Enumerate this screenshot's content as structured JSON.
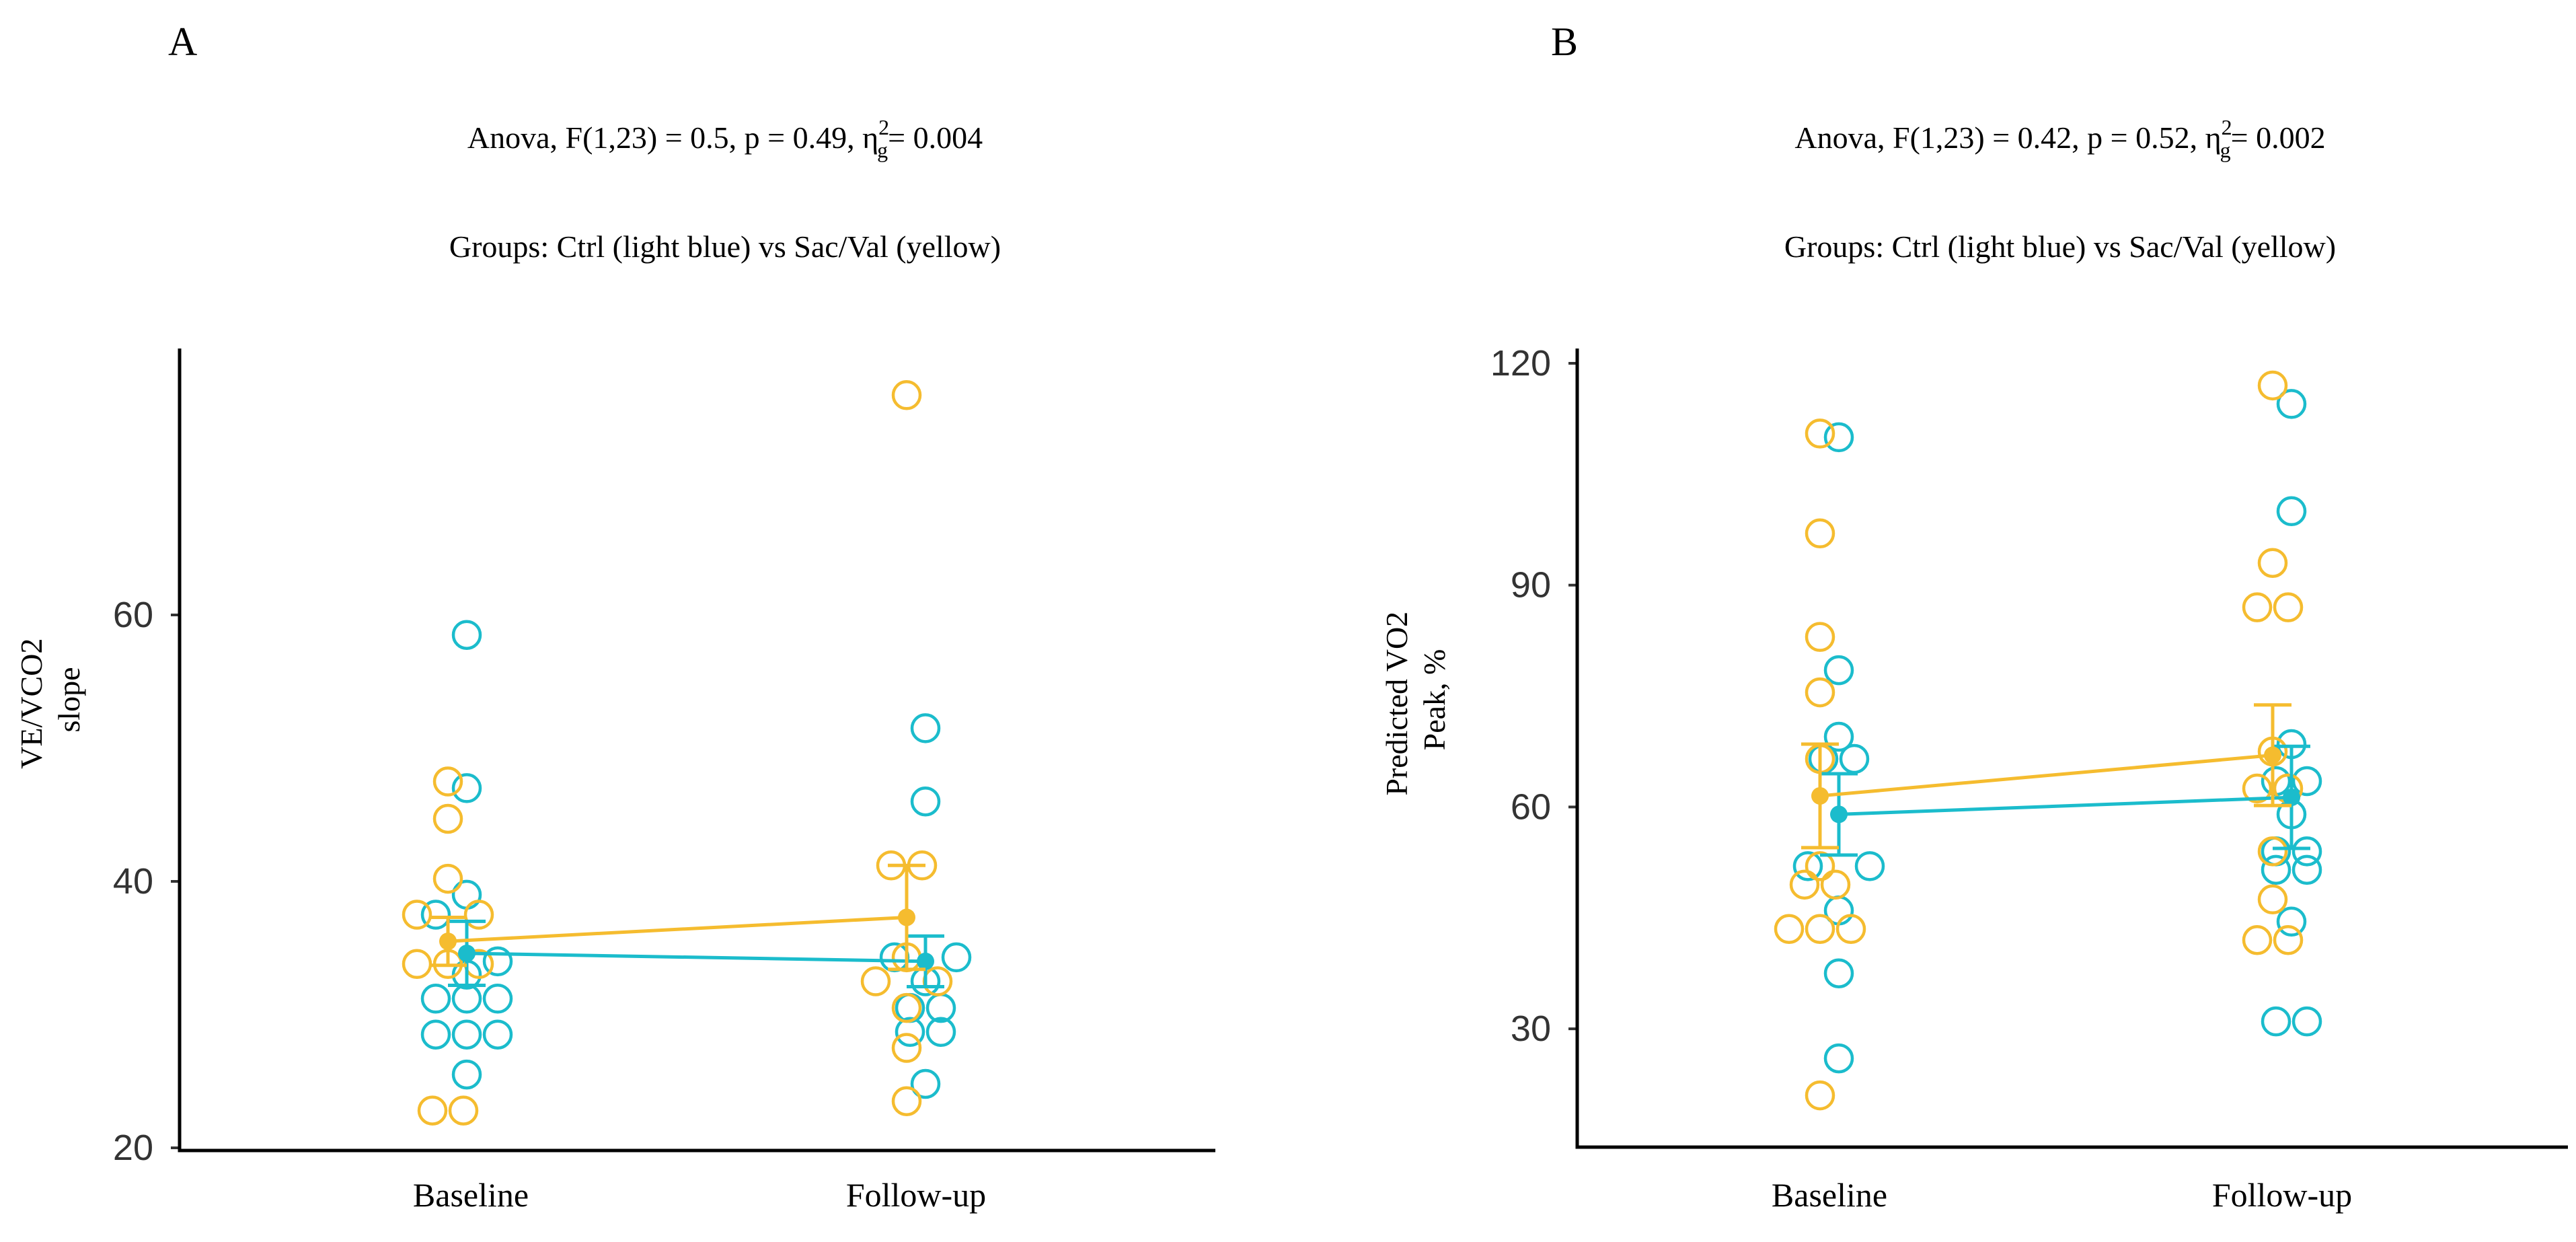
{
  "colors": {
    "ctrl": "#1BBCCC",
    "sacval": "#F5BC2F",
    "axis": "#000000",
    "background": "#ffffff"
  },
  "chart_data": [
    {
      "type": "scatter",
      "panel": "A",
      "stat_line": "Anova, F(1,23) = 0.5, p = 0.49, η",
      "stat_sup": "2",
      "stat_sub": "g",
      "stat_tail": "= 0.004",
      "subtitle": "Groups: Ctrl (light blue) vs Sac/Val (yellow)",
      "ylabel_line1": "VE/VCO2",
      "ylabel_line2": "slope",
      "categories": [
        "Baseline",
        "Follow-up"
      ],
      "yticks": [
        20,
        40,
        60
      ],
      "ylim": [
        19.8,
        80
      ],
      "series": [
        {
          "name": "Ctrl",
          "color": "#1BBCCC",
          "points": [
            [
              {
                "y": 58.5,
                "dx": 0
              },
              {
                "y": 47.0,
                "dx": 0
              },
              {
                "y": 39.0,
                "dx": 0
              },
              {
                "y": 37.5,
                "dx": -1
              },
              {
                "y": 34.0,
                "dx": 1
              },
              {
                "y": 33.0,
                "dx": 0
              },
              {
                "y": 31.2,
                "dx": -1
              },
              {
                "y": 31.2,
                "dx": 0
              },
              {
                "y": 31.2,
                "dx": 1
              },
              {
                "y": 28.5,
                "dx": -1
              },
              {
                "y": 28.5,
                "dx": 0
              },
              {
                "y": 28.5,
                "dx": 1
              },
              {
                "y": 25.5,
                "dx": 0
              }
            ],
            [
              {
                "y": 51.5,
                "dx": 0
              },
              {
                "y": 46.0,
                "dx": 0
              },
              {
                "y": 34.3,
                "dx": -1
              },
              {
                "y": 34.3,
                "dx": 1
              },
              {
                "y": 32.5,
                "dx": 0
              },
              {
                "y": 30.5,
                "dx": -0.5
              },
              {
                "y": 30.5,
                "dx": 0.5
              },
              {
                "y": 28.7,
                "dx": -0.5
              },
              {
                "y": 28.7,
                "dx": 0.5
              },
              {
                "y": 24.8,
                "dx": 0
              }
            ]
          ],
          "means": [
            34.6,
            34.0
          ],
          "sem": [
            2.4,
            1.9
          ]
        },
        {
          "name": "Sac/Val",
          "color": "#F5BC2F",
          "points": [
            [
              {
                "y": 47.5,
                "dx": 0
              },
              {
                "y": 44.7,
                "dx": 0
              },
              {
                "y": 40.2,
                "dx": 0
              },
              {
                "y": 37.5,
                "dx": -1
              },
              {
                "y": 37.5,
                "dx": 1
              },
              {
                "y": 33.8,
                "dx": -1
              },
              {
                "y": 33.8,
                "dx": 0
              },
              {
                "y": 33.8,
                "dx": 1
              },
              {
                "y": 22.8,
                "dx": -0.5
              },
              {
                "y": 22.8,
                "dx": 0.5
              }
            ],
            [
              {
                "y": 76.5,
                "dx": 0
              },
              {
                "y": 41.2,
                "dx": -0.5
              },
              {
                "y": 41.2,
                "dx": 0.5
              },
              {
                "y": 34.3,
                "dx": 0
              },
              {
                "y": 32.5,
                "dx": -1
              },
              {
                "y": 32.5,
                "dx": 1
              },
              {
                "y": 30.5,
                "dx": 0
              },
              {
                "y": 27.5,
                "dx": 0
              },
              {
                "y": 23.5,
                "dx": 0
              }
            ]
          ],
          "means": [
            35.5,
            37.3
          ],
          "sem": [
            1.8,
            3.9
          ]
        }
      ]
    },
    {
      "type": "scatter",
      "panel": "B",
      "stat_line": "Anova, F(1,23) = 0.42, p = 0.52, η",
      "stat_sup": "2",
      "stat_sub": "g",
      "stat_tail": "= 0.002",
      "subtitle": "Groups: Ctrl (light blue) vs Sac/Val (yellow)",
      "ylabel_line1": "Predicted VO2",
      "ylabel_line2": "Peak, %",
      "categories": [
        "Baseline",
        "Follow-up"
      ],
      "yticks": [
        30,
        60,
        90,
        120
      ],
      "ylim": [
        14,
        122
      ],
      "series": [
        {
          "name": "Ctrl",
          "color": "#1BBCCC",
          "points": [
            [
              {
                "y": 110.0,
                "dx": 0
              },
              {
                "y": 78.5,
                "dx": 0
              },
              {
                "y": 69.5,
                "dx": 0
              },
              {
                "y": 66.5,
                "dx": -0.5
              },
              {
                "y": 66.5,
                "dx": 0.5
              },
              {
                "y": 52.0,
                "dx": -1
              },
              {
                "y": 52.0,
                "dx": 1
              },
              {
                "y": 46.0,
                "dx": 0
              },
              {
                "y": 37.5,
                "dx": 0
              },
              {
                "y": 26.0,
                "dx": 0
              }
            ],
            [
              {
                "y": 114.5,
                "dx": 0
              },
              {
                "y": 100.0,
                "dx": 0
              },
              {
                "y": 68.5,
                "dx": 0
              },
              {
                "y": 63.5,
                "dx": -0.5
              },
              {
                "y": 63.5,
                "dx": 0.5
              },
              {
                "y": 59.0,
                "dx": 0
              },
              {
                "y": 54.0,
                "dx": -0.5
              },
              {
                "y": 54.0,
                "dx": 0.5
              },
              {
                "y": 51.5,
                "dx": -0.5
              },
              {
                "y": 51.5,
                "dx": 0.5
              },
              {
                "y": 44.5,
                "dx": 0
              },
              {
                "y": 31.0,
                "dx": -0.5
              },
              {
                "y": 31.0,
                "dx": 0.5
              }
            ]
          ],
          "means": [
            59.0,
            61.3
          ],
          "sem": [
            5.5,
            6.9
          ]
        },
        {
          "name": "Sac/Val",
          "color": "#F5BC2F",
          "points": [
            [
              {
                "y": 110.5,
                "dx": 0
              },
              {
                "y": 97.0,
                "dx": 0
              },
              {
                "y": 83.0,
                "dx": 0
              },
              {
                "y": 75.5,
                "dx": 0
              },
              {
                "y": 66.5,
                "dx": 0
              },
              {
                "y": 52.0,
                "dx": 0
              },
              {
                "y": 49.5,
                "dx": -0.5
              },
              {
                "y": 49.5,
                "dx": 0.5
              },
              {
                "y": 43.5,
                "dx": -1
              },
              {
                "y": 43.5,
                "dx": 0
              },
              {
                "y": 43.5,
                "dx": 1
              },
              {
                "y": 21.0,
                "dx": 0
              }
            ],
            [
              {
                "y": 117.0,
                "dx": 0
              },
              {
                "y": 93.0,
                "dx": 0
              },
              {
                "y": 87.0,
                "dx": -0.5
              },
              {
                "y": 87.0,
                "dx": 0.5
              },
              {
                "y": 67.5,
                "dx": 0
              },
              {
                "y": 62.5,
                "dx": -0.5
              },
              {
                "y": 62.5,
                "dx": 0.5
              },
              {
                "y": 54.0,
                "dx": 0
              },
              {
                "y": 47.5,
                "dx": 0
              },
              {
                "y": 42.0,
                "dx": -0.5
              },
              {
                "y": 42.0,
                "dx": 0.5
              }
            ]
          ],
          "means": [
            61.5,
            67.0
          ],
          "sem": [
            7.0,
            6.8
          ]
        }
      ]
    }
  ]
}
